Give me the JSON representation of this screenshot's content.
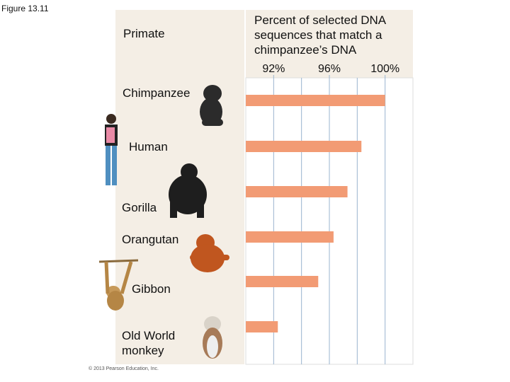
{
  "figure_label": "Figure 13.11",
  "copyright": "© 2013 Pearson Education, Inc.",
  "chart_data": {
    "type": "barh",
    "category_header": "Primate",
    "title": "Percent of selected DNA sequences that match a chimpanzee’s DNA",
    "categories": [
      "Chimpanzee",
      "Human",
      "Gorilla",
      "Orangutan",
      "Gibbon",
      "Old World monkey"
    ],
    "values": [
      100,
      98.3,
      97.3,
      96.3,
      95.2,
      92.3
    ],
    "color": "#f29b74",
    "xlim": [
      90,
      102
    ],
    "xticks": [
      {
        "value": 92,
        "label": "92%"
      },
      {
        "value": 96,
        "label": "96%"
      },
      {
        "value": 100,
        "label": "100%"
      }
    ],
    "xgrid": [
      92,
      94,
      96,
      98,
      100
    ],
    "grid": true
  }
}
